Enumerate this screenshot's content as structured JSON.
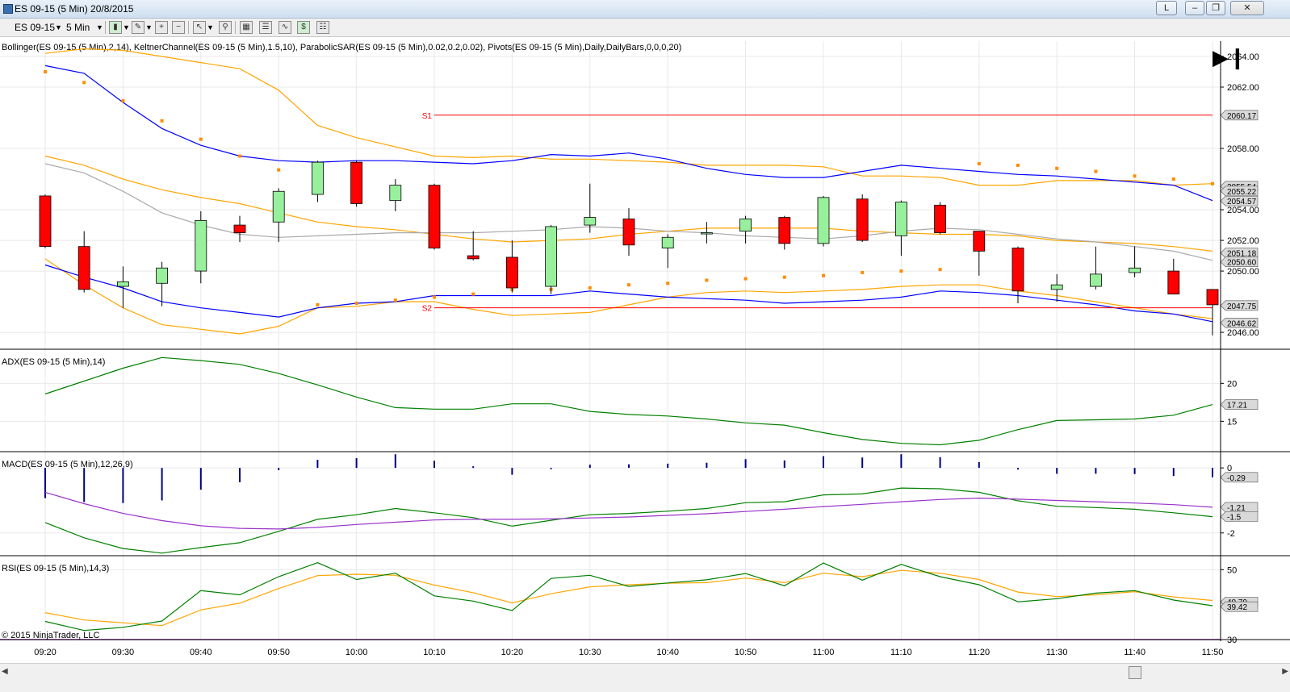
{
  "window": {
    "title": "ES 09-15 (5 Min)  20/8/2015",
    "btn_l": "L"
  },
  "toolbar": {
    "instrument": "ES 09-15",
    "interval": "5 Min"
  },
  "chart_data": {
    "type": "candlestick",
    "x": [
      "09:20",
      "09:25",
      "09:30",
      "09:35",
      "09:40",
      "09:45",
      "09:50",
      "09:55",
      "10:00",
      "10:05",
      "10:10",
      "10:15",
      "10:20",
      "10:25",
      "10:30",
      "10:35",
      "10:40",
      "10:45",
      "10:50",
      "10:55",
      "11:00",
      "11:05",
      "11:10",
      "11:15",
      "11:20",
      "11:25",
      "11:30",
      "11:35",
      "11:40",
      "11:45",
      "11:50"
    ],
    "x_ticks": [
      "09:20",
      "09:30",
      "09:40",
      "09:50",
      "10:00",
      "10:10",
      "10:20",
      "10:30",
      "10:40",
      "10:50",
      "11:00",
      "11:10",
      "11:20",
      "11:30",
      "11:40",
      "11:50"
    ],
    "up_color": "#98f09c",
    "down_color": "#ff0000",
    "panels": [
      {
        "name": "price",
        "label": "Bollinger(ES 09-15 (5 Min),2,14), KeltnerChannel(ES 09-15 (5 Min),1.5,10), ParabolicSAR(ES 09-15 (5 Min),0.02,0.2,0.02), Pivots(ES 09-15 (5 Min),Daily,DailyBars,0,0,0,20)",
        "ylim": [
          2044.9,
          2065.0
        ],
        "y_ticks": [
          "2064.00",
          "2062.00",
          "2058.00",
          "2054.00",
          "2052.00",
          "2050.00",
          "2046.00"
        ],
        "ohlc": [
          [
            2054.9,
            2055.0,
            2051.5,
            2051.6
          ],
          [
            2051.6,
            2052.6,
            2048.6,
            2048.8
          ],
          [
            2049.0,
            2050.3,
            2047.6,
            2049.3
          ],
          [
            2049.2,
            2050.6,
            2047.7,
            2050.2
          ],
          [
            2050.0,
            2053.9,
            2049.2,
            2053.3
          ],
          [
            2053.0,
            2053.6,
            2051.9,
            2052.5
          ],
          [
            2053.2,
            2055.4,
            2051.9,
            2055.2
          ],
          [
            2055.0,
            2057.2,
            2054.5,
            2057.1
          ],
          [
            2057.1,
            2057.2,
            2054.2,
            2054.4
          ],
          [
            2054.6,
            2056.0,
            2053.9,
            2055.6
          ],
          [
            2055.6,
            2055.7,
            2051.4,
            2051.5
          ],
          [
            2051.0,
            2052.6,
            2050.7,
            2050.8
          ],
          [
            2050.9,
            2052.0,
            2048.6,
            2048.9
          ],
          [
            2049.0,
            2053.0,
            2048.5,
            2052.9
          ],
          [
            2053.0,
            2055.7,
            2052.5,
            2053.5
          ],
          [
            2053.4,
            2054.1,
            2051.0,
            2051.7
          ],
          [
            2051.5,
            2052.4,
            2050.2,
            2052.2
          ],
          [
            2052.5,
            2053.2,
            2051.8,
            2052.5
          ],
          [
            2052.6,
            2053.6,
            2051.8,
            2053.4
          ],
          [
            2053.5,
            2053.6,
            2051.4,
            2051.8
          ],
          [
            2051.8,
            2054.9,
            2051.6,
            2054.8
          ],
          [
            2054.7,
            2055.0,
            2051.9,
            2052.0
          ],
          [
            2052.3,
            2054.6,
            2051.0,
            2054.5
          ],
          [
            2054.3,
            2054.5,
            2052.4,
            2052.5
          ],
          [
            2052.6,
            2052.6,
            2049.7,
            2051.3
          ],
          [
            2051.5,
            2051.6,
            2047.9,
            2048.7
          ],
          [
            2048.8,
            2049.8,
            2048.0,
            2049.1
          ],
          [
            2049.0,
            2051.6,
            2048.8,
            2049.8
          ],
          [
            2049.9,
            2051.6,
            2049.6,
            2050.2
          ],
          [
            2050.0,
            2050.8,
            2048.5,
            2048.5
          ],
          [
            2048.8,
            2048.8,
            2045.8,
            2047.8
          ]
        ],
        "bollinger_upper": [
          2063.4,
          2062.9,
          2061.0,
          2059.3,
          2058.2,
          2057.5,
          2057.2,
          2057.1,
          2057.2,
          2057.2,
          2057.1,
          2057.0,
          2057.2,
          2057.6,
          2057.5,
          2057.7,
          2057.3,
          2056.7,
          2056.3,
          2056.1,
          2056.1,
          2056.5,
          2056.9,
          2056.7,
          2056.5,
          2056.3,
          2056.2,
          2056.0,
          2055.8,
          2055.6,
          2054.6
        ],
        "bollinger_mid": [
          2057.0,
          2056.4,
          2055.2,
          2053.8,
          2053.0,
          2052.4,
          2052.2,
          2052.3,
          2052.4,
          2052.5,
          2052.5,
          2052.5,
          2052.6,
          2052.7,
          2052.9,
          2052.8,
          2052.6,
          2052.5,
          2052.3,
          2052.2,
          2052.1,
          2052.3,
          2052.6,
          2052.8,
          2052.7,
          2052.4,
          2052.1,
          2051.9,
          2051.6,
          2051.3,
          2050.7
        ],
        "bollinger_lower": [
          2050.4,
          2049.6,
          2048.9,
          2048.0,
          2047.6,
          2047.3,
          2047.0,
          2047.6,
          2047.9,
          2048.0,
          2048.4,
          2048.4,
          2048.4,
          2048.4,
          2048.7,
          2048.5,
          2048.3,
          2048.2,
          2048.1,
          2047.9,
          2048.0,
          2048.1,
          2048.3,
          2048.7,
          2048.6,
          2048.4,
          2048.1,
          2047.8,
          2047.4,
          2047.2,
          2046.7
        ],
        "keltner_upper": [
          2064.2,
          2064.5,
          2064.4,
          2064.0,
          2063.6,
          2063.2,
          2061.8,
          2059.5,
          2058.7,
          2058.1,
          2057.5,
          2057.4,
          2057.5,
          2057.3,
          2057.3,
          2057.2,
          2057.1,
          2056.9,
          2056.9,
          2056.9,
          2056.8,
          2056.2,
          2056.2,
          2056.1,
          2055.6,
          2055.6,
          2055.9,
          2055.9,
          2055.9,
          2055.6,
          2055.7
        ],
        "keltner_mid": [
          2057.5,
          2056.9,
          2056.0,
          2055.3,
          2054.8,
          2054.4,
          2053.8,
          2053.2,
          2052.9,
          2052.7,
          2052.4,
          2052.1,
          2051.9,
          2052.0,
          2052.1,
          2052.4,
          2052.6,
          2052.8,
          2052.8,
          2052.8,
          2052.8,
          2052.6,
          2052.5,
          2052.4,
          2052.4,
          2052.3,
          2052.0,
          2051.9,
          2051.8,
          2051.6,
          2051.3
        ],
        "keltner_lower": [
          2050.8,
          2049.1,
          2047.6,
          2046.5,
          2046.2,
          2045.9,
          2046.4,
          2047.6,
          2047.7,
          2048.0,
          2048.0,
          2047.5,
          2047.1,
          2047.2,
          2047.3,
          2047.8,
          2048.3,
          2048.6,
          2048.7,
          2048.6,
          2048.7,
          2048.8,
          2049.0,
          2049.1,
          2049.1,
          2048.7,
          2048.4,
          2048.0,
          2047.6,
          2047.2,
          2046.9
        ],
        "sar": [
          2063.0,
          2062.3,
          2061.1,
          2059.8,
          2058.6,
          2057.5,
          2056.6,
          2047.8,
          2047.9,
          2048.1,
          2048.3,
          2048.5,
          2048.8,
          2048.8,
          2048.9,
          2049.1,
          2049.2,
          2049.4,
          2049.5,
          2049.6,
          2049.7,
          2049.9,
          2050.0,
          2050.1,
          2057.0,
          2056.9,
          2056.7,
          2056.5,
          2056.2,
          2056.0,
          2055.7
        ],
        "pivots": [
          {
            "label": "S1",
            "value": 2060.17,
            "start": 10
          },
          {
            "label": "S2",
            "value": 2047.6,
            "start": 10
          }
        ],
        "price_tags": [
          {
            "text": "2060.17",
            "value": 2060.17
          },
          {
            "text": "2055.54",
            "value": 2055.54
          },
          {
            "text": "2055.22",
            "value": 2055.22
          },
          {
            "text": "2054.57",
            "value": 2054.57
          },
          {
            "text": "2051.18",
            "value": 2051.18
          },
          {
            "text": "2050.60",
            "value": 2050.6
          },
          {
            "text": "2047.75",
            "value": 2047.75
          },
          {
            "text": "2046.62",
            "value": 2046.62
          }
        ]
      },
      {
        "name": "adx",
        "label": "ADX(ES 09-15 (5 Min),14)",
        "ylim": [
          11.0,
          24.5
        ],
        "y_ticks": [
          "20",
          "15"
        ],
        "values": [
          18.6,
          20.3,
          22.0,
          23.4,
          23.0,
          22.5,
          21.3,
          19.8,
          18.2,
          16.8,
          16.6,
          16.6,
          17.3,
          17.3,
          16.3,
          15.9,
          15.7,
          15.3,
          14.8,
          14.5,
          13.5,
          12.6,
          12.1,
          11.9,
          12.5,
          13.9,
          15.1,
          15.2,
          15.3,
          15.8,
          17.21
        ],
        "tag": {
          "text": "17.21",
          "value": 17.21
        }
      },
      {
        "name": "macd",
        "label": "MACD(ES 09-15 (5 Min),12,26,9)",
        "ylim": [
          -2.7,
          0.5
        ],
        "y_ticks": [
          "0",
          "-2"
        ],
        "macd": [
          -1.68,
          -2.15,
          -2.48,
          -2.62,
          -2.45,
          -2.3,
          -1.95,
          -1.58,
          -1.44,
          -1.25,
          -1.38,
          -1.53,
          -1.79,
          -1.61,
          -1.44,
          -1.4,
          -1.33,
          -1.25,
          -1.07,
          -1.04,
          -0.83,
          -0.8,
          -0.62,
          -0.64,
          -0.75,
          -1.01,
          -1.18,
          -1.22,
          -1.27,
          -1.38,
          -1.5
        ],
        "signal": [
          -0.75,
          -1.1,
          -1.4,
          -1.62,
          -1.78,
          -1.86,
          -1.88,
          -1.83,
          -1.74,
          -1.67,
          -1.6,
          -1.58,
          -1.58,
          -1.57,
          -1.54,
          -1.51,
          -1.46,
          -1.41,
          -1.34,
          -1.27,
          -1.19,
          -1.12,
          -1.04,
          -0.97,
          -0.93,
          -0.96,
          -1.0,
          -1.04,
          -1.08,
          -1.13,
          -1.21
        ],
        "histogram": [
          -0.93,
          -1.05,
          -1.08,
          -1.0,
          -0.67,
          -0.44,
          -0.07,
          0.25,
          0.3,
          0.42,
          0.22,
          0.05,
          -0.21,
          -0.04,
          0.1,
          0.11,
          0.13,
          0.16,
          0.27,
          0.23,
          0.36,
          0.32,
          0.42,
          0.33,
          0.18,
          -0.05,
          -0.18,
          -0.18,
          -0.19,
          -0.25,
          -0.29
        ],
        "tags": [
          {
            "text": "-0.29",
            "value": -0.29
          },
          {
            "text": "-1.21",
            "value": -1.21
          },
          {
            "text": "-1.5",
            "value": -1.5
          }
        ]
      },
      {
        "name": "rsi",
        "label": "RSI(ES 09-15 (5 Min),14,3)",
        "ylim": [
          30.0,
          54.0
        ],
        "y_ticks": [
          "50",
          "30"
        ],
        "rsi": [
          35.2,
          32.6,
          33.5,
          35.3,
          44.0,
          42.8,
          48.0,
          52.0,
          47.2,
          49.0,
          42.5,
          41.0,
          38.3,
          47.5,
          48.4,
          45.2,
          46.2,
          47.1,
          48.9,
          45.4,
          51.9,
          47.0,
          51.5,
          48.0,
          45.7,
          40.8,
          41.7,
          43.3,
          44.0,
          41.3,
          39.7
        ],
        "signal": [
          37.7,
          35.6,
          34.8,
          34.0,
          38.5,
          40.4,
          44.6,
          48.3,
          48.7,
          48.4,
          45.6,
          43.4,
          40.5,
          43.1,
          45.1,
          45.7,
          46.1,
          46.3,
          47.6,
          46.3,
          49.0,
          48.0,
          49.8,
          49.0,
          47.2,
          43.6,
          42.3,
          42.8,
          43.7,
          42.2,
          41.2
        ],
        "tags": [
          {
            "text": "40.79",
            "value": 40.79
          },
          {
            "text": "39.42",
            "value": 39.42
          }
        ]
      }
    ]
  },
  "footer": {
    "copyright": "© 2015 NinjaTrader, LLC"
  },
  "colors": {
    "grid": "#e8e8e8",
    "axis": "#000000",
    "bollinger": "#0000ff",
    "bollinger_mid": "#a9a9a9",
    "keltner": "#ffa500",
    "sar": "#ff8c00",
    "pivot": "#ff0000",
    "adx": "#008000",
    "macd": "#008000",
    "macd_signal": "#9932cc",
    "macd_hist": "#000080",
    "rsi": "#008000",
    "rsi_signal": "#ffa500",
    "tag_bg": "#d9d9d9"
  }
}
